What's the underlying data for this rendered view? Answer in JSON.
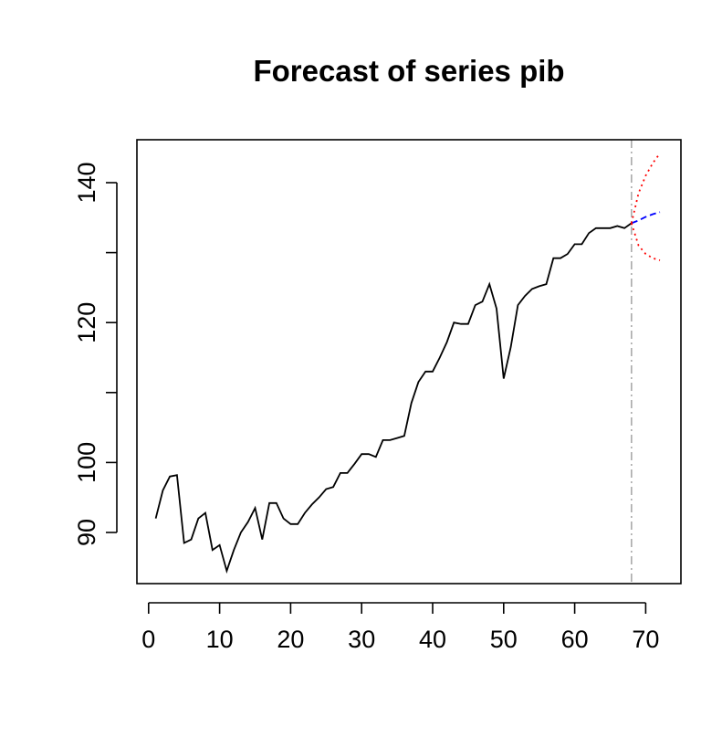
{
  "chart_data": {
    "type": "line",
    "title": "Forecast of series pib",
    "xlabel": "",
    "ylabel": "",
    "xlim": [
      0,
      75
    ],
    "ylim": [
      85,
      145
    ],
    "x_ticks": [
      0,
      10,
      20,
      30,
      40,
      50,
      60,
      70
    ],
    "y_ticks": [
      90,
      100,
      120,
      140
    ],
    "grid": false,
    "forecast_origin": 68,
    "series": [
      {
        "key": "observed",
        "color": "#000000",
        "style": "solid",
        "x": [
          1,
          2,
          3,
          4,
          5,
          6,
          7,
          8,
          9,
          10,
          11,
          12,
          13,
          14,
          15,
          16,
          17,
          18,
          19,
          20,
          21,
          22,
          23,
          24,
          25,
          26,
          27,
          28,
          29,
          30,
          31,
          32,
          33,
          34,
          35,
          36,
          37,
          38,
          39,
          40,
          41,
          42,
          43,
          44,
          45,
          46,
          47,
          48,
          49,
          50,
          51,
          52,
          53,
          54,
          55,
          56,
          57,
          58,
          59,
          60,
          61,
          62,
          63,
          64,
          65,
          66,
          67,
          68
        ],
        "values": [
          92,
          96,
          98,
          98.2,
          88.5,
          89,
          92,
          92.8,
          87.5,
          88.2,
          84.5,
          87.5,
          90,
          91.5,
          93.5,
          89,
          94.2,
          94.2,
          92,
          91.2,
          91.2,
          92.8,
          94,
          95,
          96.2,
          96.5,
          98.5,
          98.5,
          99.8,
          101.2,
          101.2,
          100.8,
          103.2,
          103.2,
          103.5,
          103.8,
          108.5,
          111.5,
          113,
          113,
          115,
          117.2,
          120,
          119.8,
          119.8,
          122.5,
          123,
          125.5,
          122,
          112,
          116.5,
          122.5,
          123.8,
          124.8,
          125.2,
          125.5,
          129.2,
          129.2,
          129.8,
          131.2,
          131.2,
          132.8,
          133.5,
          133.5,
          133.5,
          133.8,
          133.5,
          134.2
        ]
      },
      {
        "key": "forecast",
        "color": "#0000ff",
        "style": "dashed",
        "x": [
          68,
          69,
          70,
          71,
          72
        ],
        "values": [
          134.2,
          134.6,
          135.1,
          135.5,
          135.8
        ]
      },
      {
        "key": "upper",
        "color": "#ff0000",
        "style": "dotted",
        "x": [
          68,
          69,
          70,
          71,
          72
        ],
        "values": [
          134.2,
          138.5,
          141,
          142.8,
          144.2
        ]
      },
      {
        "key": "lower",
        "color": "#ff0000",
        "style": "dotted",
        "x": [
          68,
          69,
          70,
          71,
          72
        ],
        "values": [
          134.2,
          131,
          129.8,
          129.2,
          128.9
        ]
      }
    ],
    "vline_color": "#aaaaaa"
  }
}
